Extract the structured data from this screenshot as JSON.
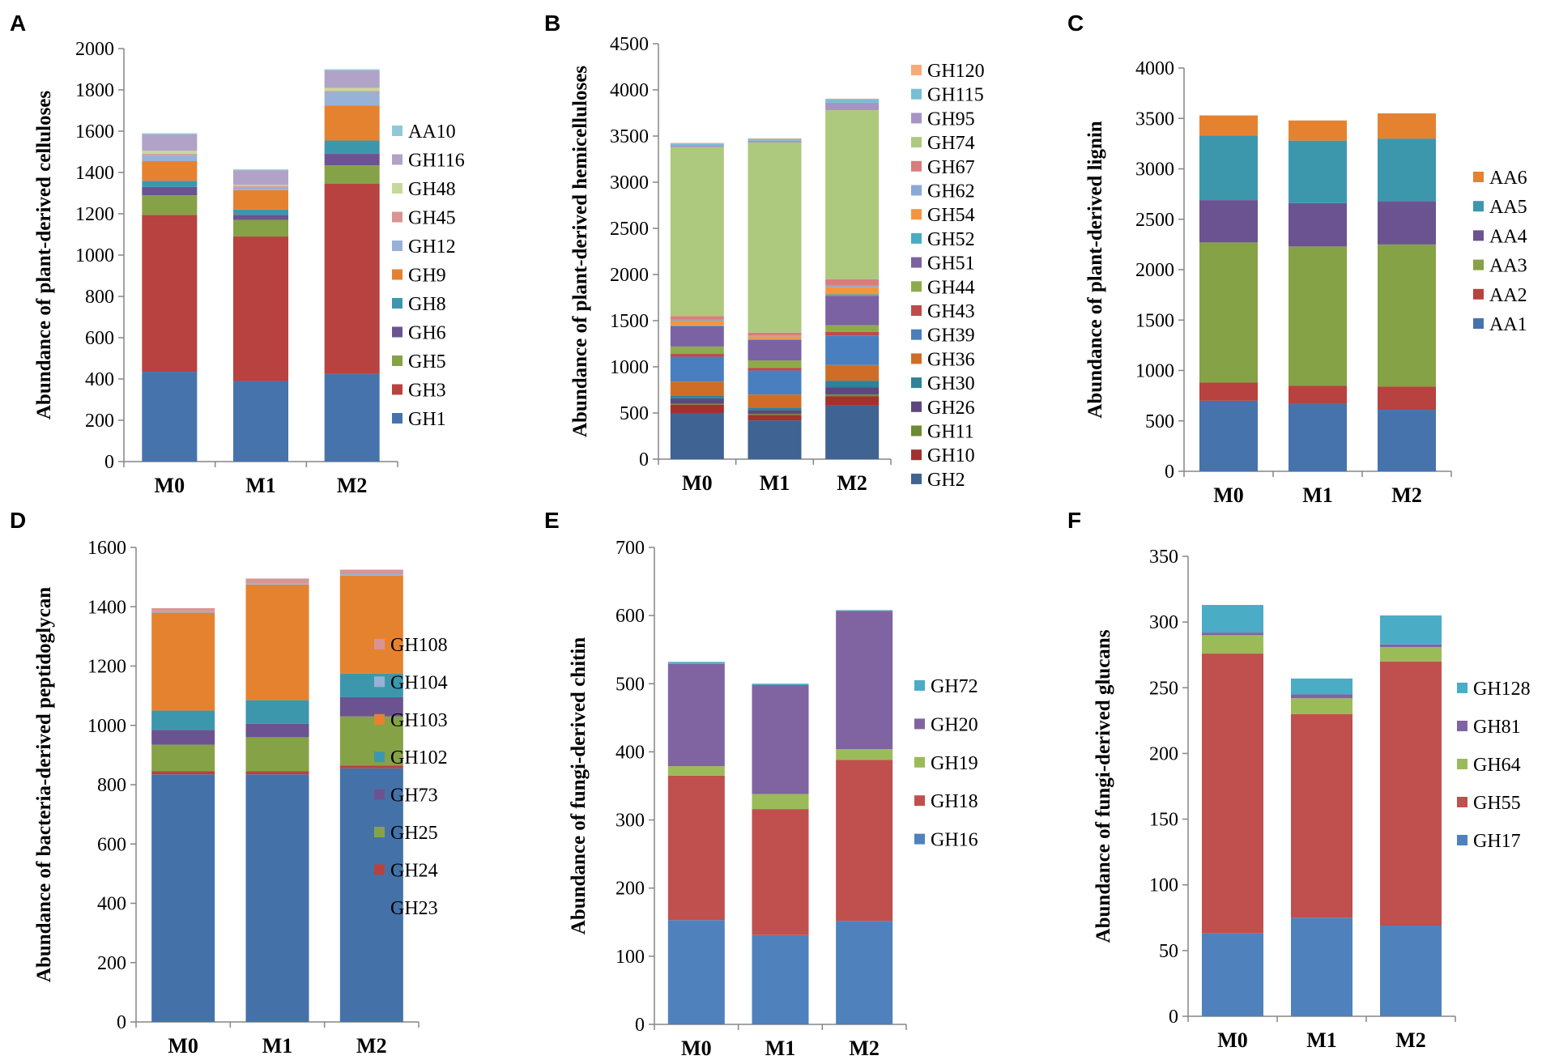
{
  "colors": {
    "GH1": "#4673ac",
    "GH3": "#b74240",
    "GH5": "#86a246",
    "GH6": "#6b5391",
    "GH8": "#3c97ad",
    "GH9": "#e58230",
    "GH12": "#98b1d6",
    "GH45": "#d89493",
    "GH48": "#c6d99a",
    "GH116": "#b0a3c7",
    "AA10": "#91c8d9",
    "GH2": "#3f6392",
    "GH10": "#a3302e",
    "GH11": "#6e8a32",
    "GH26": "#5e4780",
    "GH30": "#2f8299",
    "GH36": "#cf6d26",
    "GH39": "#4a7fbf",
    "GH43": "#be4b49",
    "GH44": "#8eab4b",
    "GH51": "#7b62a3",
    "GH52": "#49abc4",
    "GH54": "#f59540",
    "GH62": "#8aa9d6",
    "GH67": "#d87d7c",
    "GH74": "#acc97e",
    "GH95": "#a794c4",
    "GH115": "#77bfd4",
    "GH120": "#f7aa75",
    "AA1": "#4673ac",
    "AA2": "#b74240",
    "AA3": "#86a246",
    "AA4": "#6b5391",
    "AA5": "#3c97ad",
    "AA6": "#e58230",
    "GH23": "#4472a8",
    "GH24": "#b74240",
    "GH25": "#86a246",
    "GH73": "#6b5391",
    "GH102": "#3c97ad",
    "GH103": "#e58230",
    "GH104": "#98b1d6",
    "GH108": "#d89493",
    "GH16": "#4f81bd",
    "GH18": "#c0504d",
    "GH19": "#9bbb59",
    "GH20": "#8064a2",
    "GH72": "#4bacc6",
    "GH17": "#4f81bd",
    "GH55": "#c0504d",
    "GH64": "#9bbb59",
    "GH81": "#8064a2",
    "GH128": "#4bacc6"
  },
  "chart_data": [
    {
      "panel": "A",
      "type": "bar",
      "stacked": true,
      "ylabel": "Abundance of plant-derived celluloses",
      "ylim": [
        0,
        2000
      ],
      "yticks": [
        "0",
        "200",
        "400",
        "600",
        "800",
        "1000",
        "1200",
        "1400",
        "1600",
        "1800",
        "2000"
      ],
      "categories": [
        "M0",
        "M1",
        "M2"
      ],
      "series": [
        {
          "name": "GH1",
          "values": [
            435,
            390,
            425
          ]
        },
        {
          "name": "GH3",
          "values": [
            760,
            700,
            920
          ]
        },
        {
          "name": "GH5",
          "values": [
            95,
            80,
            90
          ]
        },
        {
          "name": "GH6",
          "values": [
            40,
            25,
            55
          ]
        },
        {
          "name": "GH8",
          "values": [
            30,
            25,
            65
          ]
        },
        {
          "name": "GH9",
          "values": [
            95,
            95,
            170
          ]
        },
        {
          "name": "GH12",
          "values": [
            30,
            15,
            65
          ]
        },
        {
          "name": "GH45",
          "values": [
            5,
            5,
            5
          ]
        },
        {
          "name": "GH48",
          "values": [
            15,
            5,
            15
          ]
        },
        {
          "name": "GH116",
          "values": [
            80,
            70,
            85
          ]
        },
        {
          "name": "AA10",
          "values": [
            5,
            5,
            5
          ]
        }
      ]
    },
    {
      "panel": "B",
      "type": "bar",
      "stacked": true,
      "ylabel": "Abundance of plant-derived hemicelluloses",
      "ylim": [
        0,
        4500
      ],
      "yticks": [
        "0",
        "500",
        "1000",
        "1500",
        "2000",
        "2500",
        "3000",
        "3500",
        "4000",
        "4500"
      ],
      "categories": [
        "M0",
        "M1",
        "M2"
      ],
      "series": [
        {
          "name": "GH2",
          "values": [
            500,
            420,
            580
          ]
        },
        {
          "name": "GH10",
          "values": [
            90,
            60,
            100
          ]
        },
        {
          "name": "GH11",
          "values": [
            10,
            10,
            20
          ]
        },
        {
          "name": "GH26",
          "values": [
            60,
            40,
            80
          ]
        },
        {
          "name": "GH30",
          "values": [
            30,
            30,
            70
          ]
        },
        {
          "name": "GH36",
          "values": [
            150,
            140,
            170
          ]
        },
        {
          "name": "GH39",
          "values": [
            270,
            260,
            320
          ]
        },
        {
          "name": "GH43",
          "values": [
            30,
            30,
            40
          ]
        },
        {
          "name": "GH44",
          "values": [
            80,
            80,
            70
          ]
        },
        {
          "name": "GH51",
          "values": [
            220,
            220,
            320
          ]
        },
        {
          "name": "GH52",
          "values": [
            10,
            10,
            15
          ]
        },
        {
          "name": "GH54",
          "values": [
            50,
            30,
            80
          ]
        },
        {
          "name": "GH62",
          "values": [
            10,
            10,
            15
          ]
        },
        {
          "name": "GH67",
          "values": [
            40,
            30,
            70
          ]
        },
        {
          "name": "GH74",
          "values": [
            1830,
            2060,
            1830
          ]
        },
        {
          "name": "GH95",
          "values": [
            20,
            20,
            80
          ]
        },
        {
          "name": "GH115",
          "values": [
            20,
            20,
            40
          ]
        },
        {
          "name": "GH120",
          "values": [
            5,
            5,
            5
          ]
        }
      ]
    },
    {
      "panel": "C",
      "type": "bar",
      "stacked": true,
      "ylabel": "Abundance of plant-derived lignin",
      "ylim": [
        0,
        4000
      ],
      "yticks": [
        "0",
        "500",
        "1000",
        "1500",
        "2000",
        "2500",
        "3000",
        "3500",
        "4000"
      ],
      "categories": [
        "M0",
        "M1",
        "M2"
      ],
      "series": [
        {
          "name": "AA1",
          "values": [
            700,
            670,
            610
          ]
        },
        {
          "name": "AA2",
          "values": [
            180,
            180,
            230
          ]
        },
        {
          "name": "AA3",
          "values": [
            1390,
            1380,
            1410
          ]
        },
        {
          "name": "AA4",
          "values": [
            420,
            430,
            430
          ]
        },
        {
          "name": "AA5",
          "values": [
            640,
            620,
            620
          ]
        },
        {
          "name": "AA6",
          "values": [
            200,
            200,
            250
          ]
        }
      ]
    },
    {
      "panel": "D",
      "type": "bar",
      "stacked": true,
      "ylabel": "Abundance of bacteria-derived peptidoglycan",
      "ylim": [
        0,
        1600
      ],
      "yticks": [
        "0",
        "200",
        "400",
        "600",
        "800",
        "1000",
        "1200",
        "1400",
        "1600"
      ],
      "categories": [
        "M0",
        "M1",
        "M2"
      ],
      "series": [
        {
          "name": "GH23",
          "values": [
            835,
            835,
            855
          ]
        },
        {
          "name": "GH24",
          "values": [
            10,
            10,
            10
          ]
        },
        {
          "name": "GH25",
          "values": [
            90,
            115,
            165
          ]
        },
        {
          "name": "GH73",
          "values": [
            50,
            45,
            65
          ]
        },
        {
          "name": "GH102",
          "values": [
            65,
            80,
            80
          ]
        },
        {
          "name": "GH103",
          "values": [
            330,
            390,
            330
          ]
        },
        {
          "name": "GH104",
          "values": [
            5,
            5,
            5
          ]
        },
        {
          "name": "GH108",
          "values": [
            10,
            15,
            15
          ]
        }
      ]
    },
    {
      "panel": "E",
      "type": "bar",
      "stacked": true,
      "ylabel": "Abundance of fungi-derived chitin",
      "ylim": [
        0,
        700
      ],
      "yticks": [
        "0",
        "100",
        "200",
        "300",
        "400",
        "500",
        "600",
        "700"
      ],
      "categories": [
        "M0",
        "M1",
        "M2"
      ],
      "series": [
        {
          "name": "GH16",
          "values": [
            153,
            131,
            152
          ]
        },
        {
          "name": "GH18",
          "values": [
            212,
            185,
            236
          ]
        },
        {
          "name": "GH19",
          "values": [
            14,
            22,
            16
          ]
        },
        {
          "name": "GH20",
          "values": [
            150,
            160,
            203
          ]
        },
        {
          "name": "GH72",
          "values": [
            3,
            2,
            1
          ]
        }
      ]
    },
    {
      "panel": "F",
      "type": "bar",
      "stacked": true,
      "ylabel": "Abundance of fungi-derived glucans",
      "ylim": [
        0,
        350
      ],
      "yticks": [
        "0",
        "50",
        "100",
        "150",
        "200",
        "250",
        "300",
        "350"
      ],
      "categories": [
        "M0",
        "M1",
        "M2"
      ],
      "series": [
        {
          "name": "GH17",
          "values": [
            63,
            75,
            69
          ]
        },
        {
          "name": "GH55",
          "values": [
            213,
            155,
            201
          ]
        },
        {
          "name": "GH64",
          "values": [
            14,
            12,
            11
          ]
        },
        {
          "name": "GH81",
          "values": [
            2,
            3,
            2
          ]
        },
        {
          "name": "GH128",
          "values": [
            21,
            12,
            22
          ]
        }
      ]
    }
  ]
}
